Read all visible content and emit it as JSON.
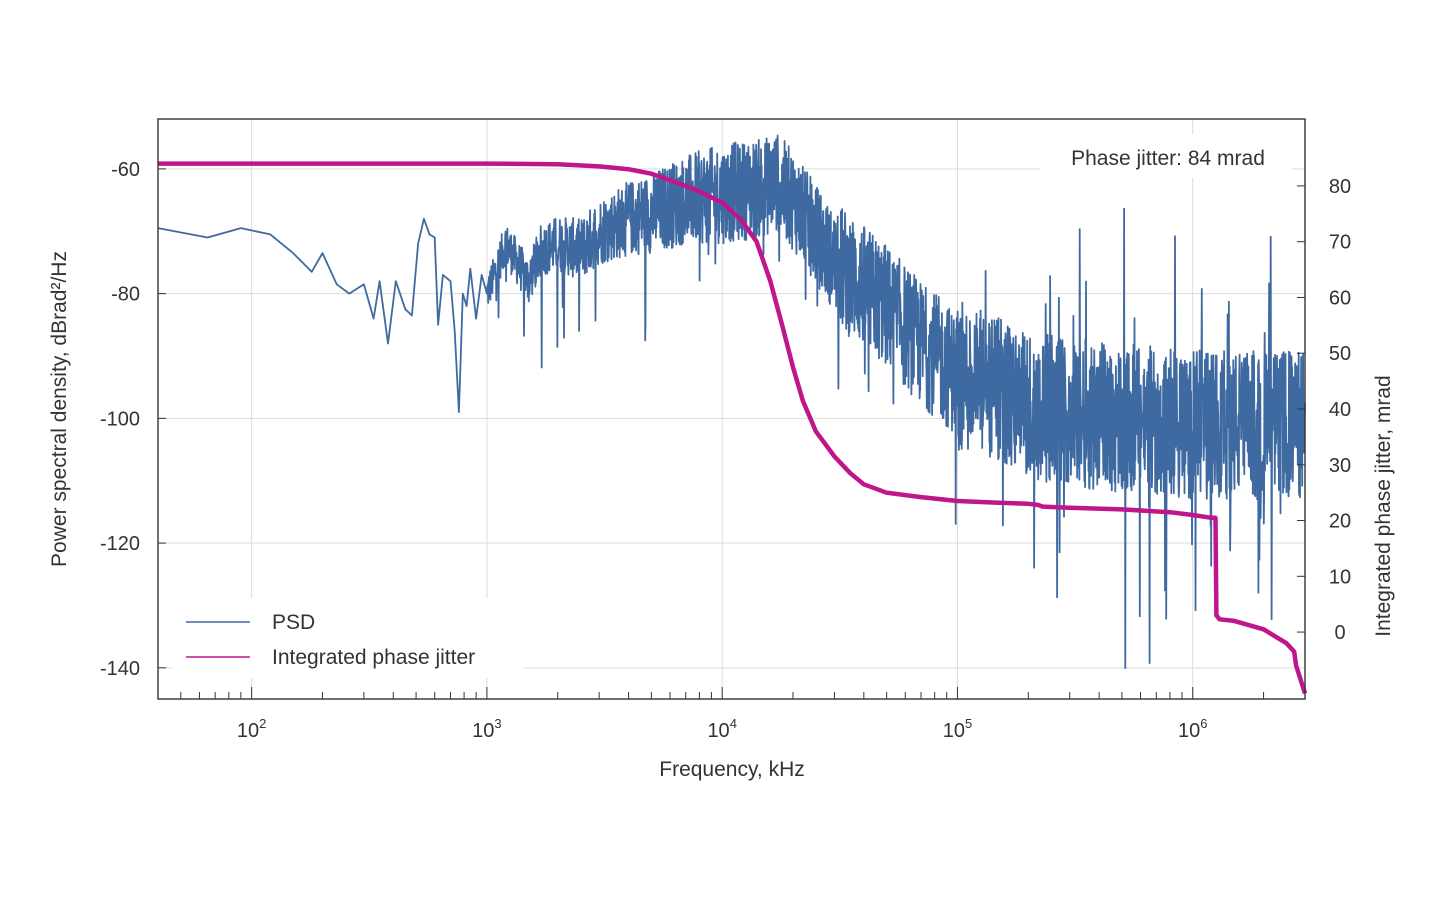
{
  "chart_data": {
    "type": "line",
    "xlabel": "Frequency, kHz",
    "ylabel_left": "Power spectral density, dBrad²/Hz",
    "ylabel_right": "Integrated phase jitter, mrad",
    "annotation": "Phase jitter: 84 mrad",
    "x_scale": "log",
    "xlim": [
      40,
      3000000
    ],
    "ylim_left": [
      -145,
      -52
    ],
    "ylim_right": [
      -12,
      92
    ],
    "x_tick_labels": [
      {
        "base": "10",
        "exp": "2",
        "value": 100
      },
      {
        "base": "10",
        "exp": "3",
        "value": 1000
      },
      {
        "base": "10",
        "exp": "4",
        "value": 10000
      },
      {
        "base": "10",
        "exp": "5",
        "value": 100000
      },
      {
        "base": "10",
        "exp": "6",
        "value": 1000000
      }
    ],
    "y_left_ticks": [
      -60,
      -80,
      -100,
      -120,
      -140
    ],
    "y_left_tick_labels": [
      "-60",
      "-80",
      "-100",
      "-120",
      "-140"
    ],
    "y_right_ticks": [
      80,
      70,
      60,
      50,
      40,
      30,
      20,
      10,
      0
    ],
    "y_right_tick_labels": [
      "80",
      "70",
      "60",
      "50",
      "40",
      "30",
      "20",
      "10",
      "0"
    ],
    "grid": true,
    "legend_position": "bottom-left",
    "series": [
      {
        "name": "PSD",
        "axis": "left",
        "color": "#3f6aa1",
        "note": "dense noisy spectrum; anchor points shown, high-frequency region rendered as noise band",
        "x": [
          40,
          65,
          90,
          120,
          150,
          180,
          200,
          230,
          260,
          300,
          330,
          350,
          380,
          410,
          450,
          480,
          510,
          540,
          570,
          600,
          620,
          650,
          700,
          730,
          760,
          790,
          820,
          850,
          900,
          950,
          1000,
          1100,
          1200,
          1300,
          1500,
          1700,
          2000,
          2500,
          3000,
          4000,
          5000,
          7000,
          10000,
          15000,
          17000,
          20000,
          30000,
          50000,
          70000,
          100000,
          200000,
          500000,
          1000000,
          3000000
        ],
        "y": [
          -69.5,
          -71,
          -69.5,
          -70.5,
          -73.5,
          -76.5,
          -73.5,
          -78.5,
          -80,
          -78.5,
          -84,
          -78,
          -88,
          -78,
          -82.5,
          -83.5,
          -72,
          -68,
          -70.5,
          -71,
          -85,
          -77,
          -78,
          -86,
          -99,
          -80,
          -82,
          -76,
          -84,
          -77,
          -80,
          -76,
          -72,
          -74,
          -78,
          -73,
          -72,
          -73,
          -70,
          -68,
          -67,
          -65,
          -64,
          -63,
          -62,
          -65,
          -75,
          -82,
          -88,
          -93,
          -98,
          -100,
          -101,
          -101
        ]
      },
      {
        "name": "Integrated phase jitter",
        "axis": "right",
        "color": "#c0168c",
        "x": [
          40,
          100,
          300,
          1000,
          2000,
          3000,
          4000,
          5000,
          6000,
          7000,
          8000,
          10000,
          12000,
          14000,
          16000,
          18000,
          20000,
          22000,
          25000,
          30000,
          35000,
          40000,
          50000,
          70000,
          100000,
          150000,
          200000,
          220000,
          230000,
          300000,
          500000,
          800000,
          1000000,
          1200000,
          1250000,
          1260000,
          1300000,
          1500000,
          2000000,
          2500000,
          2700000,
          2750000,
          3000000
        ],
        "y": [
          84,
          84,
          84,
          84,
          83.9,
          83.5,
          83,
          82.2,
          81,
          80,
          79,
          77,
          74,
          70,
          63,
          55,
          47.5,
          41.5,
          36,
          31.5,
          28.5,
          26.5,
          25,
          24.2,
          23.5,
          23.2,
          23,
          22.8,
          22.5,
          22.3,
          22,
          21.5,
          21,
          20.5,
          20.5,
          3,
          2.3,
          2,
          0.5,
          -2,
          -3.5,
          -6,
          -11
        ]
      }
    ]
  }
}
